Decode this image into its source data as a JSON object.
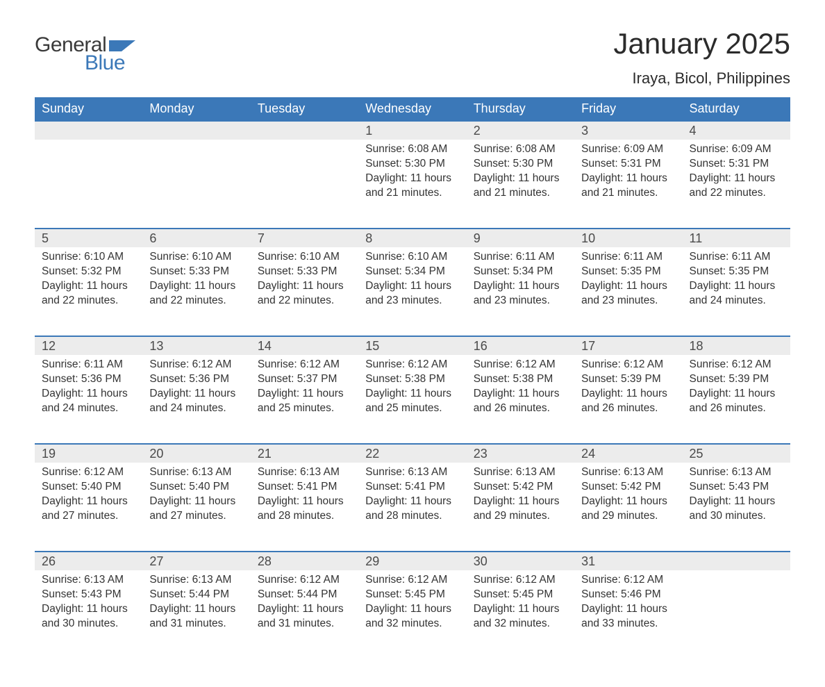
{
  "brand": {
    "general": "General",
    "blue": "Blue",
    "flag_color": "#3b78b8"
  },
  "title": "January 2025",
  "location": "Iraya, Bicol, Philippines",
  "colors": {
    "header_bg": "#3b78b8",
    "header_text": "#ffffff",
    "daynum_bg": "#ececec",
    "row_border": "#3b78b8",
    "body_text": "#333333",
    "background": "#ffffff"
  },
  "weekdays": [
    "Sunday",
    "Monday",
    "Tuesday",
    "Wednesday",
    "Thursday",
    "Friday",
    "Saturday"
  ],
  "weeks": [
    [
      null,
      null,
      null,
      {
        "n": "1",
        "sunrise": "6:08 AM",
        "sunset": "5:30 PM",
        "daylight": "11 hours and 21 minutes."
      },
      {
        "n": "2",
        "sunrise": "6:08 AM",
        "sunset": "5:30 PM",
        "daylight": "11 hours and 21 minutes."
      },
      {
        "n": "3",
        "sunrise": "6:09 AM",
        "sunset": "5:31 PM",
        "daylight": "11 hours and 21 minutes."
      },
      {
        "n": "4",
        "sunrise": "6:09 AM",
        "sunset": "5:31 PM",
        "daylight": "11 hours and 22 minutes."
      }
    ],
    [
      {
        "n": "5",
        "sunrise": "6:10 AM",
        "sunset": "5:32 PM",
        "daylight": "11 hours and 22 minutes."
      },
      {
        "n": "6",
        "sunrise": "6:10 AM",
        "sunset": "5:33 PM",
        "daylight": "11 hours and 22 minutes."
      },
      {
        "n": "7",
        "sunrise": "6:10 AM",
        "sunset": "5:33 PM",
        "daylight": "11 hours and 22 minutes."
      },
      {
        "n": "8",
        "sunrise": "6:10 AM",
        "sunset": "5:34 PM",
        "daylight": "11 hours and 23 minutes."
      },
      {
        "n": "9",
        "sunrise": "6:11 AM",
        "sunset": "5:34 PM",
        "daylight": "11 hours and 23 minutes."
      },
      {
        "n": "10",
        "sunrise": "6:11 AM",
        "sunset": "5:35 PM",
        "daylight": "11 hours and 23 minutes."
      },
      {
        "n": "11",
        "sunrise": "6:11 AM",
        "sunset": "5:35 PM",
        "daylight": "11 hours and 24 minutes."
      }
    ],
    [
      {
        "n": "12",
        "sunrise": "6:11 AM",
        "sunset": "5:36 PM",
        "daylight": "11 hours and 24 minutes."
      },
      {
        "n": "13",
        "sunrise": "6:12 AM",
        "sunset": "5:36 PM",
        "daylight": "11 hours and 24 minutes."
      },
      {
        "n": "14",
        "sunrise": "6:12 AM",
        "sunset": "5:37 PM",
        "daylight": "11 hours and 25 minutes."
      },
      {
        "n": "15",
        "sunrise": "6:12 AM",
        "sunset": "5:38 PM",
        "daylight": "11 hours and 25 minutes."
      },
      {
        "n": "16",
        "sunrise": "6:12 AM",
        "sunset": "5:38 PM",
        "daylight": "11 hours and 26 minutes."
      },
      {
        "n": "17",
        "sunrise": "6:12 AM",
        "sunset": "5:39 PM",
        "daylight": "11 hours and 26 minutes."
      },
      {
        "n": "18",
        "sunrise": "6:12 AM",
        "sunset": "5:39 PM",
        "daylight": "11 hours and 26 minutes."
      }
    ],
    [
      {
        "n": "19",
        "sunrise": "6:12 AM",
        "sunset": "5:40 PM",
        "daylight": "11 hours and 27 minutes."
      },
      {
        "n": "20",
        "sunrise": "6:13 AM",
        "sunset": "5:40 PM",
        "daylight": "11 hours and 27 minutes."
      },
      {
        "n": "21",
        "sunrise": "6:13 AM",
        "sunset": "5:41 PM",
        "daylight": "11 hours and 28 minutes."
      },
      {
        "n": "22",
        "sunrise": "6:13 AM",
        "sunset": "5:41 PM",
        "daylight": "11 hours and 28 minutes."
      },
      {
        "n": "23",
        "sunrise": "6:13 AM",
        "sunset": "5:42 PM",
        "daylight": "11 hours and 29 minutes."
      },
      {
        "n": "24",
        "sunrise": "6:13 AM",
        "sunset": "5:42 PM",
        "daylight": "11 hours and 29 minutes."
      },
      {
        "n": "25",
        "sunrise": "6:13 AM",
        "sunset": "5:43 PM",
        "daylight": "11 hours and 30 minutes."
      }
    ],
    [
      {
        "n": "26",
        "sunrise": "6:13 AM",
        "sunset": "5:43 PM",
        "daylight": "11 hours and 30 minutes."
      },
      {
        "n": "27",
        "sunrise": "6:13 AM",
        "sunset": "5:44 PM",
        "daylight": "11 hours and 31 minutes."
      },
      {
        "n": "28",
        "sunrise": "6:12 AM",
        "sunset": "5:44 PM",
        "daylight": "11 hours and 31 minutes."
      },
      {
        "n": "29",
        "sunrise": "6:12 AM",
        "sunset": "5:45 PM",
        "daylight": "11 hours and 32 minutes."
      },
      {
        "n": "30",
        "sunrise": "6:12 AM",
        "sunset": "5:45 PM",
        "daylight": "11 hours and 32 minutes."
      },
      {
        "n": "31",
        "sunrise": "6:12 AM",
        "sunset": "5:46 PM",
        "daylight": "11 hours and 33 minutes."
      },
      null
    ]
  ],
  "labels": {
    "sunrise": "Sunrise: ",
    "sunset": "Sunset: ",
    "daylight": "Daylight: "
  }
}
